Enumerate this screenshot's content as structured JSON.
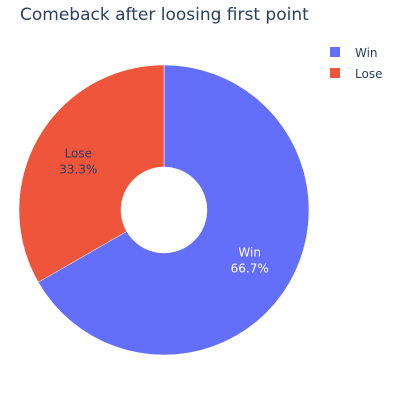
{
  "chart_data": {
    "type": "pie",
    "title": "Comeback after loosing first point",
    "hole": true,
    "categories": [
      "Win",
      "Lose"
    ],
    "values": [
      66.7,
      33.3
    ],
    "percent_labels": [
      "66.7%",
      "33.3%"
    ],
    "colors": [
      "#636efa",
      "#ef553b"
    ],
    "label_text_colors": [
      "#ffffff",
      "#2a3f5f"
    ],
    "legend": {
      "placement": "top-right",
      "entries": [
        "Win",
        "Lose"
      ]
    }
  }
}
